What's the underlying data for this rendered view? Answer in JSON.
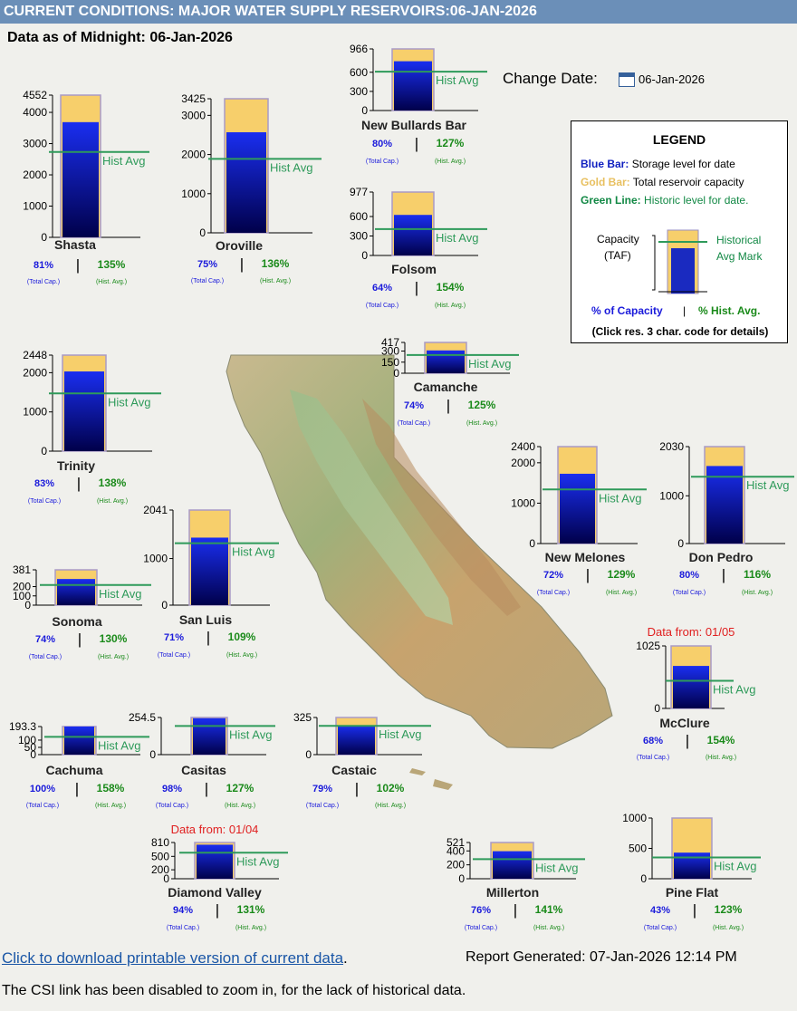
{
  "header": {
    "title": "CURRENT CONDITIONS: MAJOR WATER SUPPLY RESERVOIRS:06-JAN-2026",
    "as_of": "Data as of Midnight: 06-Jan-2026"
  },
  "change_date": {
    "label": "Change Date:",
    "value": "06-Jan-2026"
  },
  "legend": {
    "title": "LEGEND",
    "blue_key": "Blue Bar:",
    "blue_text": "Storage level for date",
    "gold_key": "Gold Bar:",
    "gold_text": "Total reservoir capacity",
    "green_key": "Green Line:",
    "green_text": "Historic level for date.",
    "capacity_label": "Capacity",
    "capacity_unit": "(TAF)",
    "hist_label": "Historical",
    "hist_label2": "Avg Mark",
    "pct_cap": "% of Capacity",
    "sep": "|",
    "pct_hist": "% Hist. Avg.",
    "click_note": "(Click res. 3 char. code for details)"
  },
  "colors": {
    "capacity_gold": "#f7cf6b",
    "storage_blue_top": "#1a2ef0",
    "storage_blue_bottom": "#00004a",
    "hist_green": "#2e9a5a",
    "pct_blue": "#1a1adb",
    "pct_green": "#1a8a1a",
    "note_red": "#e02020"
  },
  "labels": {
    "hist_avg": "Hist Avg",
    "total_cap": "(Total Cap.)",
    "hist_avg_small": "(Hist. Avg.)",
    "sep": "|"
  },
  "footer": {
    "download_link": "Click to download printable version of current data",
    "period": ".",
    "report_generated": "Report Generated: 07-Jan-2026 12:14 PM",
    "note": "The CSI link has been disabled to zoom in, for the lack of historical data."
  },
  "chart_data": [
    {
      "type": "bar",
      "name": "Shasta",
      "unit": "TAF",
      "ylim": [
        0,
        4552
      ],
      "ticks": [
        0,
        1000,
        2000,
        3000,
        4000,
        4552
      ],
      "capacity": 4552,
      "storage": 3687,
      "hist_avg": 2731,
      "pct_capacity": "81%",
      "pct_hist": "135%"
    },
    {
      "type": "bar",
      "name": "Oroville",
      "unit": "TAF",
      "ylim": [
        0,
        3425
      ],
      "ticks": [
        0,
        1000,
        2000,
        3000,
        3425
      ],
      "capacity": 3425,
      "storage": 2569,
      "hist_avg": 1889,
      "pct_capacity": "75%",
      "pct_hist": "136%"
    },
    {
      "type": "bar",
      "name": "New Bullards Bar",
      "unit": "TAF",
      "ylim": [
        0,
        966
      ],
      "ticks": [
        0,
        300,
        600,
        966
      ],
      "capacity": 966,
      "storage": 773,
      "hist_avg": 609,
      "pct_capacity": "80%",
      "pct_hist": "127%"
    },
    {
      "type": "bar",
      "name": "Folsom",
      "unit": "TAF",
      "ylim": [
        0,
        977
      ],
      "ticks": [
        0,
        300,
        600,
        977
      ],
      "capacity": 977,
      "storage": 625,
      "hist_avg": 406,
      "pct_capacity": "64%",
      "pct_hist": "154%"
    },
    {
      "type": "bar",
      "name": "Trinity",
      "unit": "TAF",
      "ylim": [
        0,
        2448
      ],
      "ticks": [
        0,
        1000,
        2000,
        2448
      ],
      "capacity": 2448,
      "storage": 2032,
      "hist_avg": 1472,
      "pct_capacity": "83%",
      "pct_hist": "138%"
    },
    {
      "type": "bar",
      "name": "Camanche",
      "unit": "TAF",
      "ylim": [
        0,
        417
      ],
      "ticks": [
        0,
        150,
        300,
        417
      ],
      "capacity": 417,
      "storage": 309,
      "hist_avg": 247,
      "pct_capacity": "74%",
      "pct_hist": "125%"
    },
    {
      "type": "bar",
      "name": "New Melones",
      "unit": "TAF",
      "ylim": [
        0,
        2400
      ],
      "ticks": [
        0,
        1000,
        2000,
        2400
      ],
      "capacity": 2400,
      "storage": 1728,
      "hist_avg": 1340,
      "pct_capacity": "72%",
      "pct_hist": "129%"
    },
    {
      "type": "bar",
      "name": "Don Pedro",
      "unit": "TAF",
      "ylim": [
        0,
        2030
      ],
      "ticks": [
        0,
        1000,
        2030
      ],
      "capacity": 2030,
      "storage": 1624,
      "hist_avg": 1400,
      "pct_capacity": "80%",
      "pct_hist": "116%"
    },
    {
      "type": "bar",
      "name": "Sonoma",
      "unit": "TAF",
      "ylim": [
        0,
        381
      ],
      "ticks": [
        0,
        100,
        200,
        381
      ],
      "capacity": 381,
      "storage": 282,
      "hist_avg": 217,
      "pct_capacity": "74%",
      "pct_hist": "130%"
    },
    {
      "type": "bar",
      "name": "San Luis",
      "unit": "TAF",
      "ylim": [
        0,
        2041
      ],
      "ticks": [
        0,
        1000,
        2041
      ],
      "capacity": 2041,
      "storage": 1449,
      "hist_avg": 1329,
      "pct_capacity": "71%",
      "pct_hist": "109%"
    },
    {
      "type": "bar",
      "name": "McClure",
      "unit": "TAF",
      "ylim": [
        0,
        1025
      ],
      "ticks": [
        0,
        1025
      ],
      "capacity": 1025,
      "storage": 697,
      "hist_avg": 453,
      "pct_capacity": "68%",
      "pct_hist": "154%",
      "note": "Data from:  01/05"
    },
    {
      "type": "bar",
      "name": "Cachuma",
      "unit": "TAF",
      "ylim": [
        0,
        193.3
      ],
      "ticks": [
        0,
        50,
        100,
        193.3
      ],
      "capacity": 193.3,
      "storage": 193.3,
      "hist_avg": 122,
      "pct_capacity": "100%",
      "pct_hist": "158%"
    },
    {
      "type": "bar",
      "name": "Casitas",
      "unit": "TAF",
      "ylim": [
        0,
        254.5
      ],
      "ticks": [
        0,
        254.5
      ],
      "capacity": 254.5,
      "storage": 249.4,
      "hist_avg": 196,
      "pct_capacity": "98%",
      "pct_hist": "127%"
    },
    {
      "type": "bar",
      "name": "Castaic",
      "unit": "TAF",
      "ylim": [
        0,
        325
      ],
      "ticks": [
        0,
        325
      ],
      "capacity": 325,
      "storage": 257,
      "hist_avg": 252,
      "pct_capacity": "79%",
      "pct_hist": "102%"
    },
    {
      "type": "bar",
      "name": "Diamond Valley",
      "unit": "TAF",
      "ylim": [
        0,
        810
      ],
      "ticks": [
        0,
        200,
        500,
        810
      ],
      "capacity": 810,
      "storage": 761,
      "hist_avg": 581,
      "pct_capacity": "94%",
      "pct_hist": "131%",
      "note": "Data from:  01/04"
    },
    {
      "type": "bar",
      "name": "Millerton",
      "unit": "TAF",
      "ylim": [
        0,
        521
      ],
      "ticks": [
        0,
        200,
        400,
        521
      ],
      "capacity": 521,
      "storage": 396,
      "hist_avg": 281,
      "pct_capacity": "76%",
      "pct_hist": "141%"
    },
    {
      "type": "bar",
      "name": "Pine Flat",
      "unit": "TAF",
      "ylim": [
        0,
        1000
      ],
      "ticks": [
        0,
        500,
        1000
      ],
      "capacity": 1000,
      "storage": 430,
      "hist_avg": 350,
      "pct_capacity": "43%",
      "pct_hist": "123%"
    }
  ]
}
